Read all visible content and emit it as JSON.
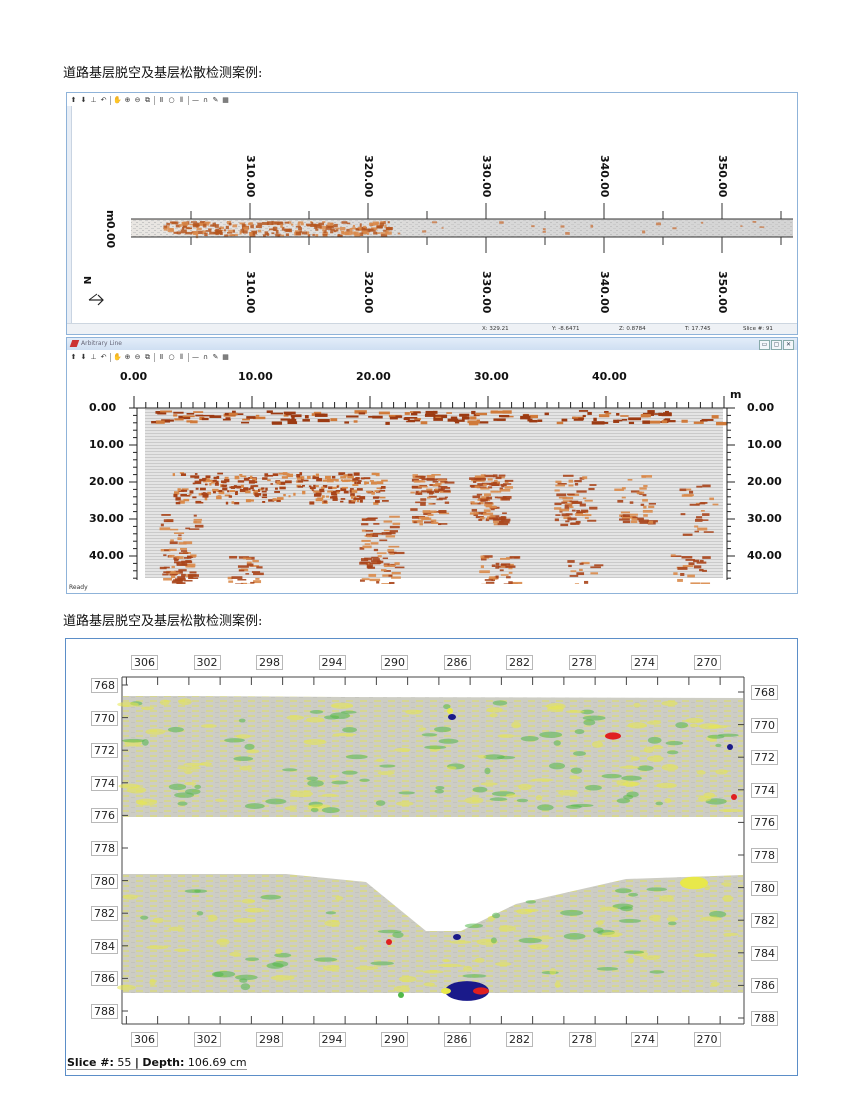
{
  "caption1": "道路基层脱空及基层松散检测案例:",
  "caption2": "道路基层脱空及基层松散检测案例:",
  "colors": {
    "radar_brown": "#b5561e",
    "window_border": "#8fb3d9",
    "figure_border": "#5b8ec8",
    "slice_yellow": "#e8e84a",
    "slice_green": "#52b84a",
    "slice_red": "#e02020",
    "slice_blue": "#1a1a8a"
  },
  "window1": {
    "toolbar_icons": [
      "arrow-up-icon",
      "arrow-down-icon",
      "trace-icon",
      "rotate-icon",
      "hand-icon",
      "zoom-in-icon",
      "zoom-out-icon",
      "zoom-box-icon",
      "pause-icon",
      "circle-icon",
      "bars-icon",
      "line-icon",
      "arc-icon",
      "pen-icon",
      "grid-icon"
    ],
    "toolbar_glyphs": [
      "⬆",
      "⬇",
      "⊥",
      "↶",
      "✋",
      "⊕",
      "⊖",
      "⧉",
      "Ⅱ",
      "○",
      "⦀",
      "—",
      "∩",
      "✎",
      "▦"
    ],
    "x_ticks": [
      "310.00",
      "320.00",
      "330.00",
      "340.00",
      "350.00"
    ],
    "unit": "m",
    "y_value": "0.00",
    "north_label": "N",
    "status": {
      "x": "X: 329.21",
      "y": "Y: -8.6471",
      "z": "Z: 0.8784",
      "t": "T: 17.745",
      "slice": "Slice #: 91"
    }
  },
  "window2": {
    "title": "Arbitrary Line",
    "window_controls": [
      "▭",
      "▢",
      "✕"
    ],
    "toolbar_icons": [
      "arrow-up-icon",
      "arrow-down-icon",
      "trace-icon",
      "rotate-icon",
      "hand-icon",
      "zoom-in-icon",
      "zoom-out-icon",
      "zoom-box-icon",
      "pause-icon",
      "circle-icon",
      "bars-icon",
      "line-icon",
      "arc-icon",
      "pen-icon",
      "grid-icon"
    ],
    "toolbar_glyphs": [
      "⬆",
      "⬇",
      "⊥",
      "↶",
      "✋",
      "⊕",
      "⊖",
      "⧉",
      "Ⅱ",
      "○",
      "⦀",
      "—",
      "∩",
      "✎",
      "▦"
    ],
    "x_ticks": [
      "0.00",
      "10.00",
      "20.00",
      "30.00",
      "40.00"
    ],
    "unit": "m",
    "depth_ticks": [
      "0.00",
      "10.00",
      "20.00",
      "30.00",
      "40.00"
    ],
    "status": "Ready"
  },
  "figure2": {
    "x_ticks": [
      "306",
      "302",
      "298",
      "294",
      "290",
      "286",
      "282",
      "278",
      "274",
      "270"
    ],
    "y_ticks": [
      "768",
      "770",
      "772",
      "774",
      "776",
      "778",
      "780",
      "782",
      "784",
      "786",
      "788"
    ],
    "slice_label": "Slice #:",
    "slice_value": "55",
    "separator": "|",
    "depth_label": "Depth:",
    "depth_value": "106.69 cm"
  }
}
